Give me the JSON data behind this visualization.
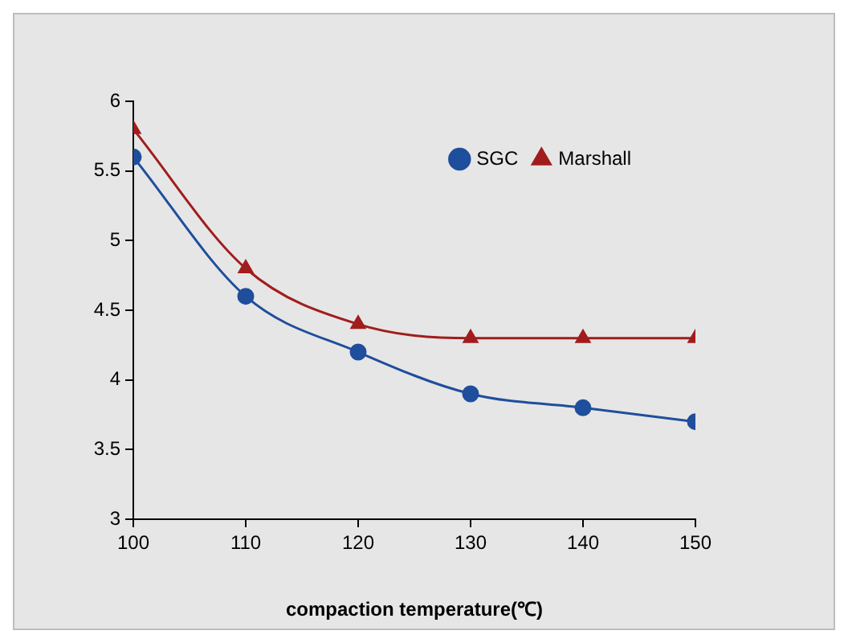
{
  "chart_data": {
    "type": "line",
    "xlabel": "compaction temperature(℃)",
    "x": [
      100,
      110,
      120,
      130,
      140,
      150
    ],
    "series": [
      {
        "name": "SGC",
        "color": "#1f4e9c",
        "marker": "circle",
        "values": [
          5.6,
          4.6,
          4.2,
          3.9,
          3.8,
          3.7
        ]
      },
      {
        "name": "Marshall",
        "color": "#a11d1d",
        "marker": "triangle",
        "values": [
          5.8,
          4.8,
          4.4,
          4.3,
          4.3,
          4.3
        ]
      }
    ],
    "xlim": [
      100,
      150
    ],
    "xticks": [
      100,
      110,
      120,
      130,
      140,
      150
    ],
    "ylim": [
      3,
      6
    ],
    "yticks": [
      3,
      3.5,
      4,
      4.5,
      5,
      5.5,
      6
    ],
    "grid": false,
    "legend": "top right",
    "line_style": "solid"
  }
}
